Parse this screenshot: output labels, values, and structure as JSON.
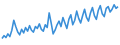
{
  "chart_data": {
    "type": "line",
    "color": "#3a8fd8",
    "tick_labels": false,
    "grid": false,
    "ylim": [
      0,
      45
    ],
    "values": [
      5,
      8,
      6,
      10,
      7,
      14,
      25,
      18,
      12,
      9,
      15,
      11,
      17,
      13,
      19,
      14,
      12,
      18,
      16,
      21,
      15,
      13,
      20,
      17,
      33,
      22,
      10,
      14,
      20,
      24,
      18,
      28,
      22,
      16,
      26,
      31,
      20,
      25,
      35,
      27,
      22,
      30,
      37,
      28,
      24,
      33,
      39,
      30,
      26,
      36,
      41,
      32,
      29,
      38,
      40,
      34,
      37,
      42,
      38,
      40
    ]
  }
}
